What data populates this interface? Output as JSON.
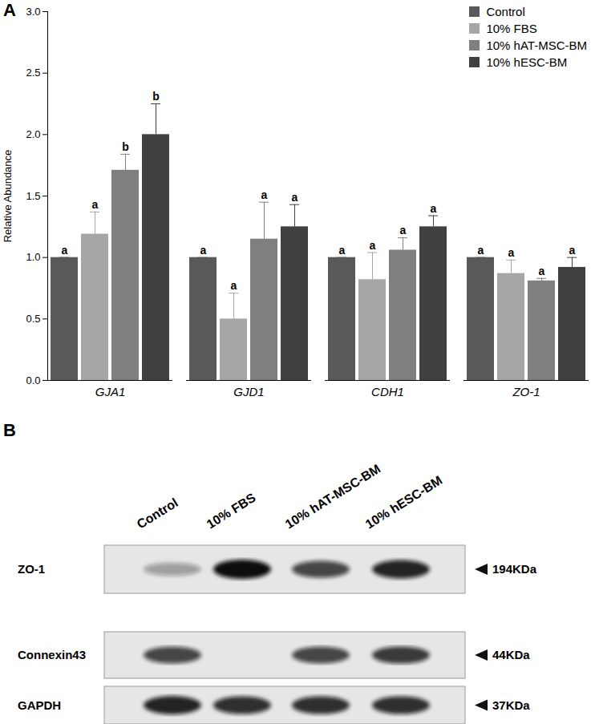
{
  "chart_data": {
    "type": "bar",
    "panel_label": "A",
    "y_label": "Relative Abundance",
    "categories": [
      "GJA1",
      "GJD1",
      "CDH1",
      "ZO-1"
    ],
    "series": [
      {
        "name": "Control",
        "color": "#595959",
        "values": [
          1.0,
          1.0,
          1.0,
          1.0
        ],
        "errors": [
          0,
          0,
          0,
          0
        ],
        "letters": [
          "a",
          "a",
          "a",
          "a"
        ]
      },
      {
        "name": "10% FBS",
        "color": "#a6a6a6",
        "values": [
          1.19,
          0.5,
          0.82,
          0.87
        ],
        "errors": [
          0.18,
          0.21,
          0.22,
          0.11
        ],
        "letters": [
          "a",
          "a",
          "a",
          "a"
        ]
      },
      {
        "name": "10% hAT-MSC-BM",
        "color": "#7f7f7f",
        "values": [
          1.71,
          1.15,
          1.06,
          0.81
        ],
        "errors": [
          0.13,
          0.3,
          0.1,
          0.02
        ],
        "letters": [
          "b",
          "a",
          "a",
          "a"
        ]
      },
      {
        "name": "10% hESC-BM",
        "color": "#404040",
        "values": [
          2.0,
          1.25,
          1.25,
          0.92
        ],
        "errors": [
          0.25,
          0.18,
          0.09,
          0.08
        ],
        "letters": [
          "b",
          "a",
          "a",
          "a"
        ]
      }
    ],
    "ylim": [
      0,
      3
    ],
    "yticks": [
      {
        "value": 0,
        "label": "0.0"
      },
      {
        "value": 0.5,
        "label": "0.5"
      },
      {
        "value": 1,
        "label": "1.0"
      },
      {
        "value": 1.5,
        "label": "1.5"
      },
      {
        "value": 2,
        "label": "2.0"
      },
      {
        "value": 2.5,
        "label": "2.5"
      },
      {
        "value": 3,
        "label": "3.0"
      }
    ],
    "grid": false,
    "legend": "top-right"
  },
  "panel_b": {
    "label": "B",
    "lanes": [
      "Control",
      "10% FBS",
      "10% hAT-MSC-BM",
      "10% hESC-BM"
    ],
    "rows": [
      {
        "name": "ZO-1",
        "size": "194KDa",
        "intensity": [
          0.35,
          1.0,
          0.75,
          0.9
        ]
      },
      {
        "name": "Connexin43",
        "size": "44KDa",
        "intensity": [
          0.75,
          0,
          0.75,
          0.8
        ]
      },
      {
        "name": "GAPDH",
        "size": "37KDa",
        "intensity": [
          0.9,
          0.85,
          0.85,
          0.85
        ]
      }
    ]
  }
}
